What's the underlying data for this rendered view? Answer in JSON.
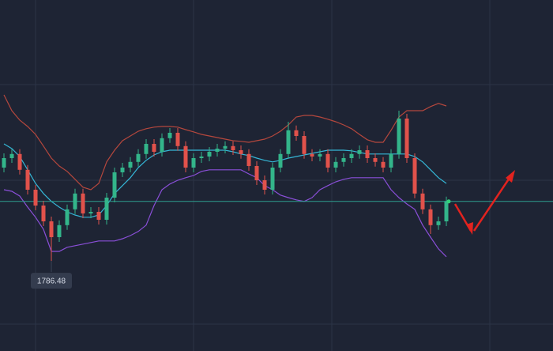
{
  "chart_data": {
    "type": "candlestick",
    "ylim": [
      1758,
      1869
    ],
    "up_color": "#33b58a",
    "down_color": "#e1524b",
    "open": [
      1816,
      1819,
      1820.3,
      1815.3,
      1809,
      1804,
      1799,
      1794,
      1797.8,
      1802.8,
      1807.8,
      1801.5,
      1802,
      1799.5,
      1806.5,
      1814.5,
      1816,
      1817.8,
      1820.3,
      1823.5,
      1821,
      1825.3,
      1827,
      1822.8,
      1816,
      1819,
      1819.5,
      1821,
      1822,
      1822.8,
      1821.5,
      1820.3,
      1816.5,
      1812,
      1809,
      1816,
      1820.3,
      1827.8,
      1826,
      1820.3,
      1819.5,
      1820.3,
      1816,
      1817.8,
      1819,
      1820.3,
      1821.5,
      1819,
      1817.8,
      1816,
      1820.3,
      1831.5,
      1819,
      1807.8,
      1802.8,
      1797.8,
      1799
    ],
    "high": [
      1820.5,
      1821.8,
      1821.8,
      1816.8,
      1810.5,
      1805.5,
      1800.5,
      1799.3,
      1804.3,
      1809.3,
      1809.3,
      1803.5,
      1803.5,
      1808,
      1816,
      1817.5,
      1819.3,
      1821.8,
      1825,
      1825,
      1826.8,
      1828.5,
      1828.5,
      1824.3,
      1820.5,
      1821,
      1822.5,
      1823.5,
      1824.3,
      1824.3,
      1823,
      1821.8,
      1818,
      1813.5,
      1817.5,
      1821.8,
      1830.5,
      1829.3,
      1827.5,
      1821.8,
      1821.8,
      1821.8,
      1819.3,
      1820.5,
      1821.8,
      1823,
      1823,
      1820.5,
      1819.3,
      1821.8,
      1834,
      1833,
      1820.5,
      1809.3,
      1804.3,
      1800.5,
      1806.8
    ],
    "low": [
      1814.5,
      1817.5,
      1813.8,
      1807.5,
      1802.5,
      1797.5,
      1786.48,
      1792.5,
      1796.3,
      1801.3,
      1800,
      1800,
      1798,
      1798,
      1805,
      1813,
      1814.5,
      1816.3,
      1818.8,
      1819.5,
      1819.5,
      1823.8,
      1821.3,
      1814.5,
      1814.5,
      1817.5,
      1818,
      1819.5,
      1820.5,
      1820,
      1818.8,
      1815,
      1810.5,
      1807.5,
      1807.5,
      1814.5,
      1818.8,
      1824.5,
      1818.8,
      1818,
      1818,
      1814.5,
      1814.5,
      1816.3,
      1817.5,
      1818.8,
      1817.5,
      1816.3,
      1814.5,
      1814.5,
      1818.8,
      1817.5,
      1806.3,
      1801.3,
      1795,
      1796.3,
      1797.5
    ],
    "close": [
      1819,
      1820.3,
      1815.3,
      1809,
      1804,
      1799,
      1794,
      1797.8,
      1802.8,
      1807.8,
      1801.5,
      1802,
      1799.5,
      1806.5,
      1814.5,
      1816,
      1817.8,
      1820.3,
      1823.5,
      1821,
      1825.3,
      1827,
      1822.8,
      1816,
      1819,
      1819.5,
      1821,
      1822,
      1822.8,
      1821.5,
      1820.3,
      1816.5,
      1812,
      1809,
      1816,
      1820.3,
      1827.8,
      1826,
      1820.3,
      1819.5,
      1820.3,
      1816,
      1817.8,
      1819,
      1820.3,
      1821.5,
      1819,
      1817.8,
      1816,
      1820.3,
      1831.5,
      1819,
      1807.8,
      1802.8,
      1797.8,
      1799,
      1805.3
    ],
    "bands": [
      {
        "color": "#b5473d",
        "values": [
          1839,
          1834,
          1831,
          1829,
          1826.5,
          1822.8,
          1819,
          1816.5,
          1814.8,
          1812.3,
          1809.8,
          1809,
          1811,
          1817.8,
          1821.5,
          1824.5,
          1826,
          1827.5,
          1828.3,
          1828.8,
          1829,
          1829,
          1828.8,
          1828,
          1827.3,
          1826.5,
          1826,
          1825.5,
          1825,
          1824.5,
          1824.3,
          1824,
          1824.5,
          1825,
          1826,
          1827.5,
          1829.5,
          1832,
          1832.5,
          1832.5,
          1832,
          1831.3,
          1830.5,
          1829.5,
          1828.3,
          1826.5,
          1824.8,
          1824,
          1824,
          1827.8,
          1832,
          1834,
          1834,
          1834,
          1835.3,
          1836.3,
          1835.5
        ]
      },
      {
        "color": "#35b6d6",
        "values": [
          1823.5,
          1822,
          1819.5,
          1815.3,
          1811,
          1807.8,
          1805.3,
          1803.5,
          1802,
          1801,
          1800.3,
          1800.3,
          1801,
          1804,
          1807.8,
          1810.3,
          1812.8,
          1816,
          1818.3,
          1820,
          1821,
          1821.5,
          1821.5,
          1821.5,
          1821.5,
          1821.5,
          1821.5,
          1821.5,
          1821.5,
          1821,
          1820.3,
          1819.8,
          1819,
          1818.3,
          1817.8,
          1818.3,
          1819,
          1819.5,
          1820,
          1820.5,
          1821,
          1821.5,
          1821.5,
          1821.5,
          1821.3,
          1820.8,
          1820.3,
          1820.3,
          1820.3,
          1820.3,
          1820.3,
          1820.3,
          1819.5,
          1817.8,
          1815.3,
          1812.8,
          1811
        ]
      },
      {
        "color": "#8a4fd8",
        "values": [
          1809,
          1808.5,
          1807,
          1803.5,
          1800.3,
          1796.5,
          1789.5,
          1789.5,
          1790.8,
          1791.3,
          1791.8,
          1792.3,
          1792.8,
          1792.8,
          1792.8,
          1793.5,
          1794.5,
          1795.8,
          1797.8,
          1804,
          1809,
          1810.8,
          1812,
          1812.8,
          1813.5,
          1814.8,
          1815.3,
          1815.3,
          1815.3,
          1815.3,
          1815.3,
          1814,
          1812.8,
          1810.3,
          1809,
          1807.3,
          1806.5,
          1805.8,
          1805.3,
          1806.5,
          1809,
          1810.3,
          1811.5,
          1812.3,
          1812.8,
          1812.8,
          1812.8,
          1812.8,
          1812.8,
          1809,
          1806.5,
          1804.5,
          1802.8,
          1797.8,
          1794,
          1790.3,
          1787.8
        ]
      }
    ],
    "annotation": "1786.48"
  }
}
